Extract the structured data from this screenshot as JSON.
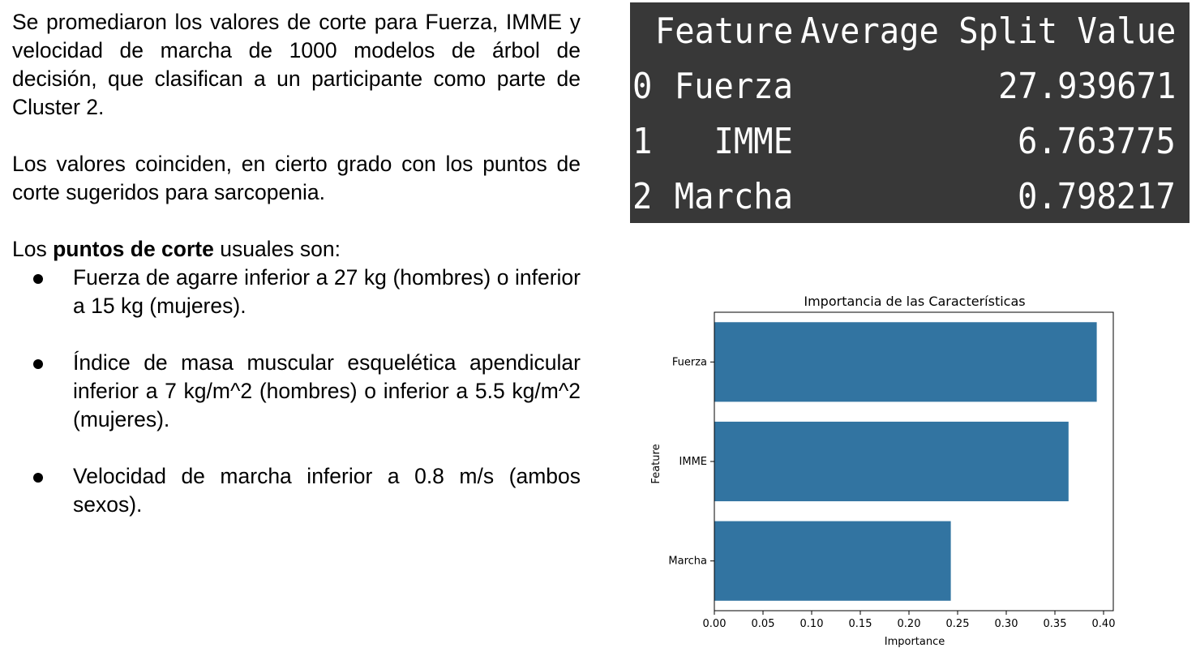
{
  "left_text": {
    "p1": "Se promediaron los valores de corte para Fuerza, IMME y velocidad de marcha  de 1000 modelos de árbol de decisión, que clasifican a un participante como parte de Cluster 2.",
    "p2": "Los valores coinciden, en cierto grado con los puntos de corte sugeridos para sarcopenia.",
    "p3_prefix": "Los ",
    "p3_bold": "puntos de corte",
    "p3_suffix": " usuales son:",
    "bullets": [
      "Fuerza de agarre inferior a 27 kg (hombres) o inferior a 15 kg (mujeres).",
      "Índice de masa muscular esquelética apendicular inferior a 7 kg/m^2 (hombres) o inferior a 5.5 kg/m^2 (mujeres).",
      "Velocidad de marcha inferior a 0.8 m/s (ambos sexos)."
    ]
  },
  "split_table": {
    "columns": [
      "Feature",
      "Average Split Value"
    ],
    "rows": [
      {
        "index": "0",
        "feature": "Fuerza",
        "value": "27.939671"
      },
      {
        "index": "1",
        "feature": "IMME",
        "value": "6.763775"
      },
      {
        "index": "2",
        "feature": "Marcha",
        "value": "0.798217"
      }
    ],
    "colors": {
      "background": "#383838",
      "text": "#ffffff"
    }
  },
  "chart_data": {
    "type": "bar",
    "orientation": "horizontal",
    "title": "Importancia de las Características",
    "xlabel": "Importance",
    "ylabel": "Feature",
    "categories": [
      "Fuerza",
      "IMME",
      "Marcha"
    ],
    "values": [
      0.393,
      0.364,
      0.243
    ],
    "xlim": [
      0,
      0.41
    ],
    "xticks": [
      "0.00",
      "0.05",
      "0.10",
      "0.15",
      "0.20",
      "0.25",
      "0.30",
      "0.35",
      "0.40"
    ],
    "grid": false,
    "bar_color": "#3274a1"
  }
}
